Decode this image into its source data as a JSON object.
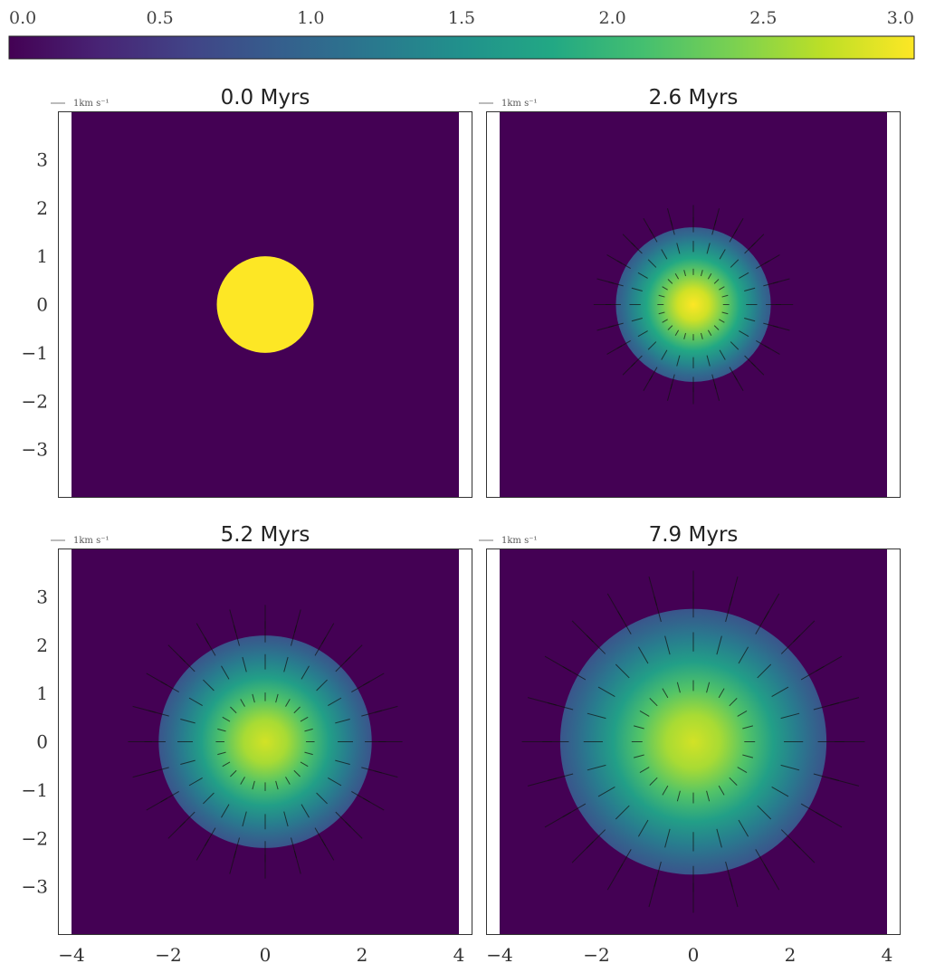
{
  "chart_data": {
    "type": "heatmap",
    "colorbar": {
      "colormap": "viridis",
      "min": 0.0,
      "max": 3.0,
      "ticks": [
        "0.0",
        "0.5",
        "1.0",
        "1.5",
        "2.0",
        "2.5",
        "3.0"
      ],
      "placement": "top"
    },
    "xlim": [
      -4,
      4
    ],
    "ylim": [
      -4,
      4
    ],
    "x_ticks": [
      "−4",
      "−2",
      "0",
      "2",
      "4"
    ],
    "y_ticks": [
      "3",
      "2",
      "1",
      "0",
      "−1",
      "−2",
      "−3"
    ],
    "quiver_key_label": "1km s⁻¹",
    "panels": [
      {
        "title": "0.0 Myrs",
        "radius": 1.0,
        "profile": "step",
        "peak": 3.0
      },
      {
        "title": "2.6 Myrs",
        "radius": 1.6,
        "profile": "smooth",
        "peak": 3.0
      },
      {
        "title": "5.2 Myrs",
        "radius": 2.2,
        "profile": "smooth",
        "peak": 2.8
      },
      {
        "title": "7.9 Myrs",
        "radius": 2.75,
        "profile": "smooth",
        "peak": 2.8
      }
    ],
    "background_value": 0.0,
    "grid": false
  }
}
